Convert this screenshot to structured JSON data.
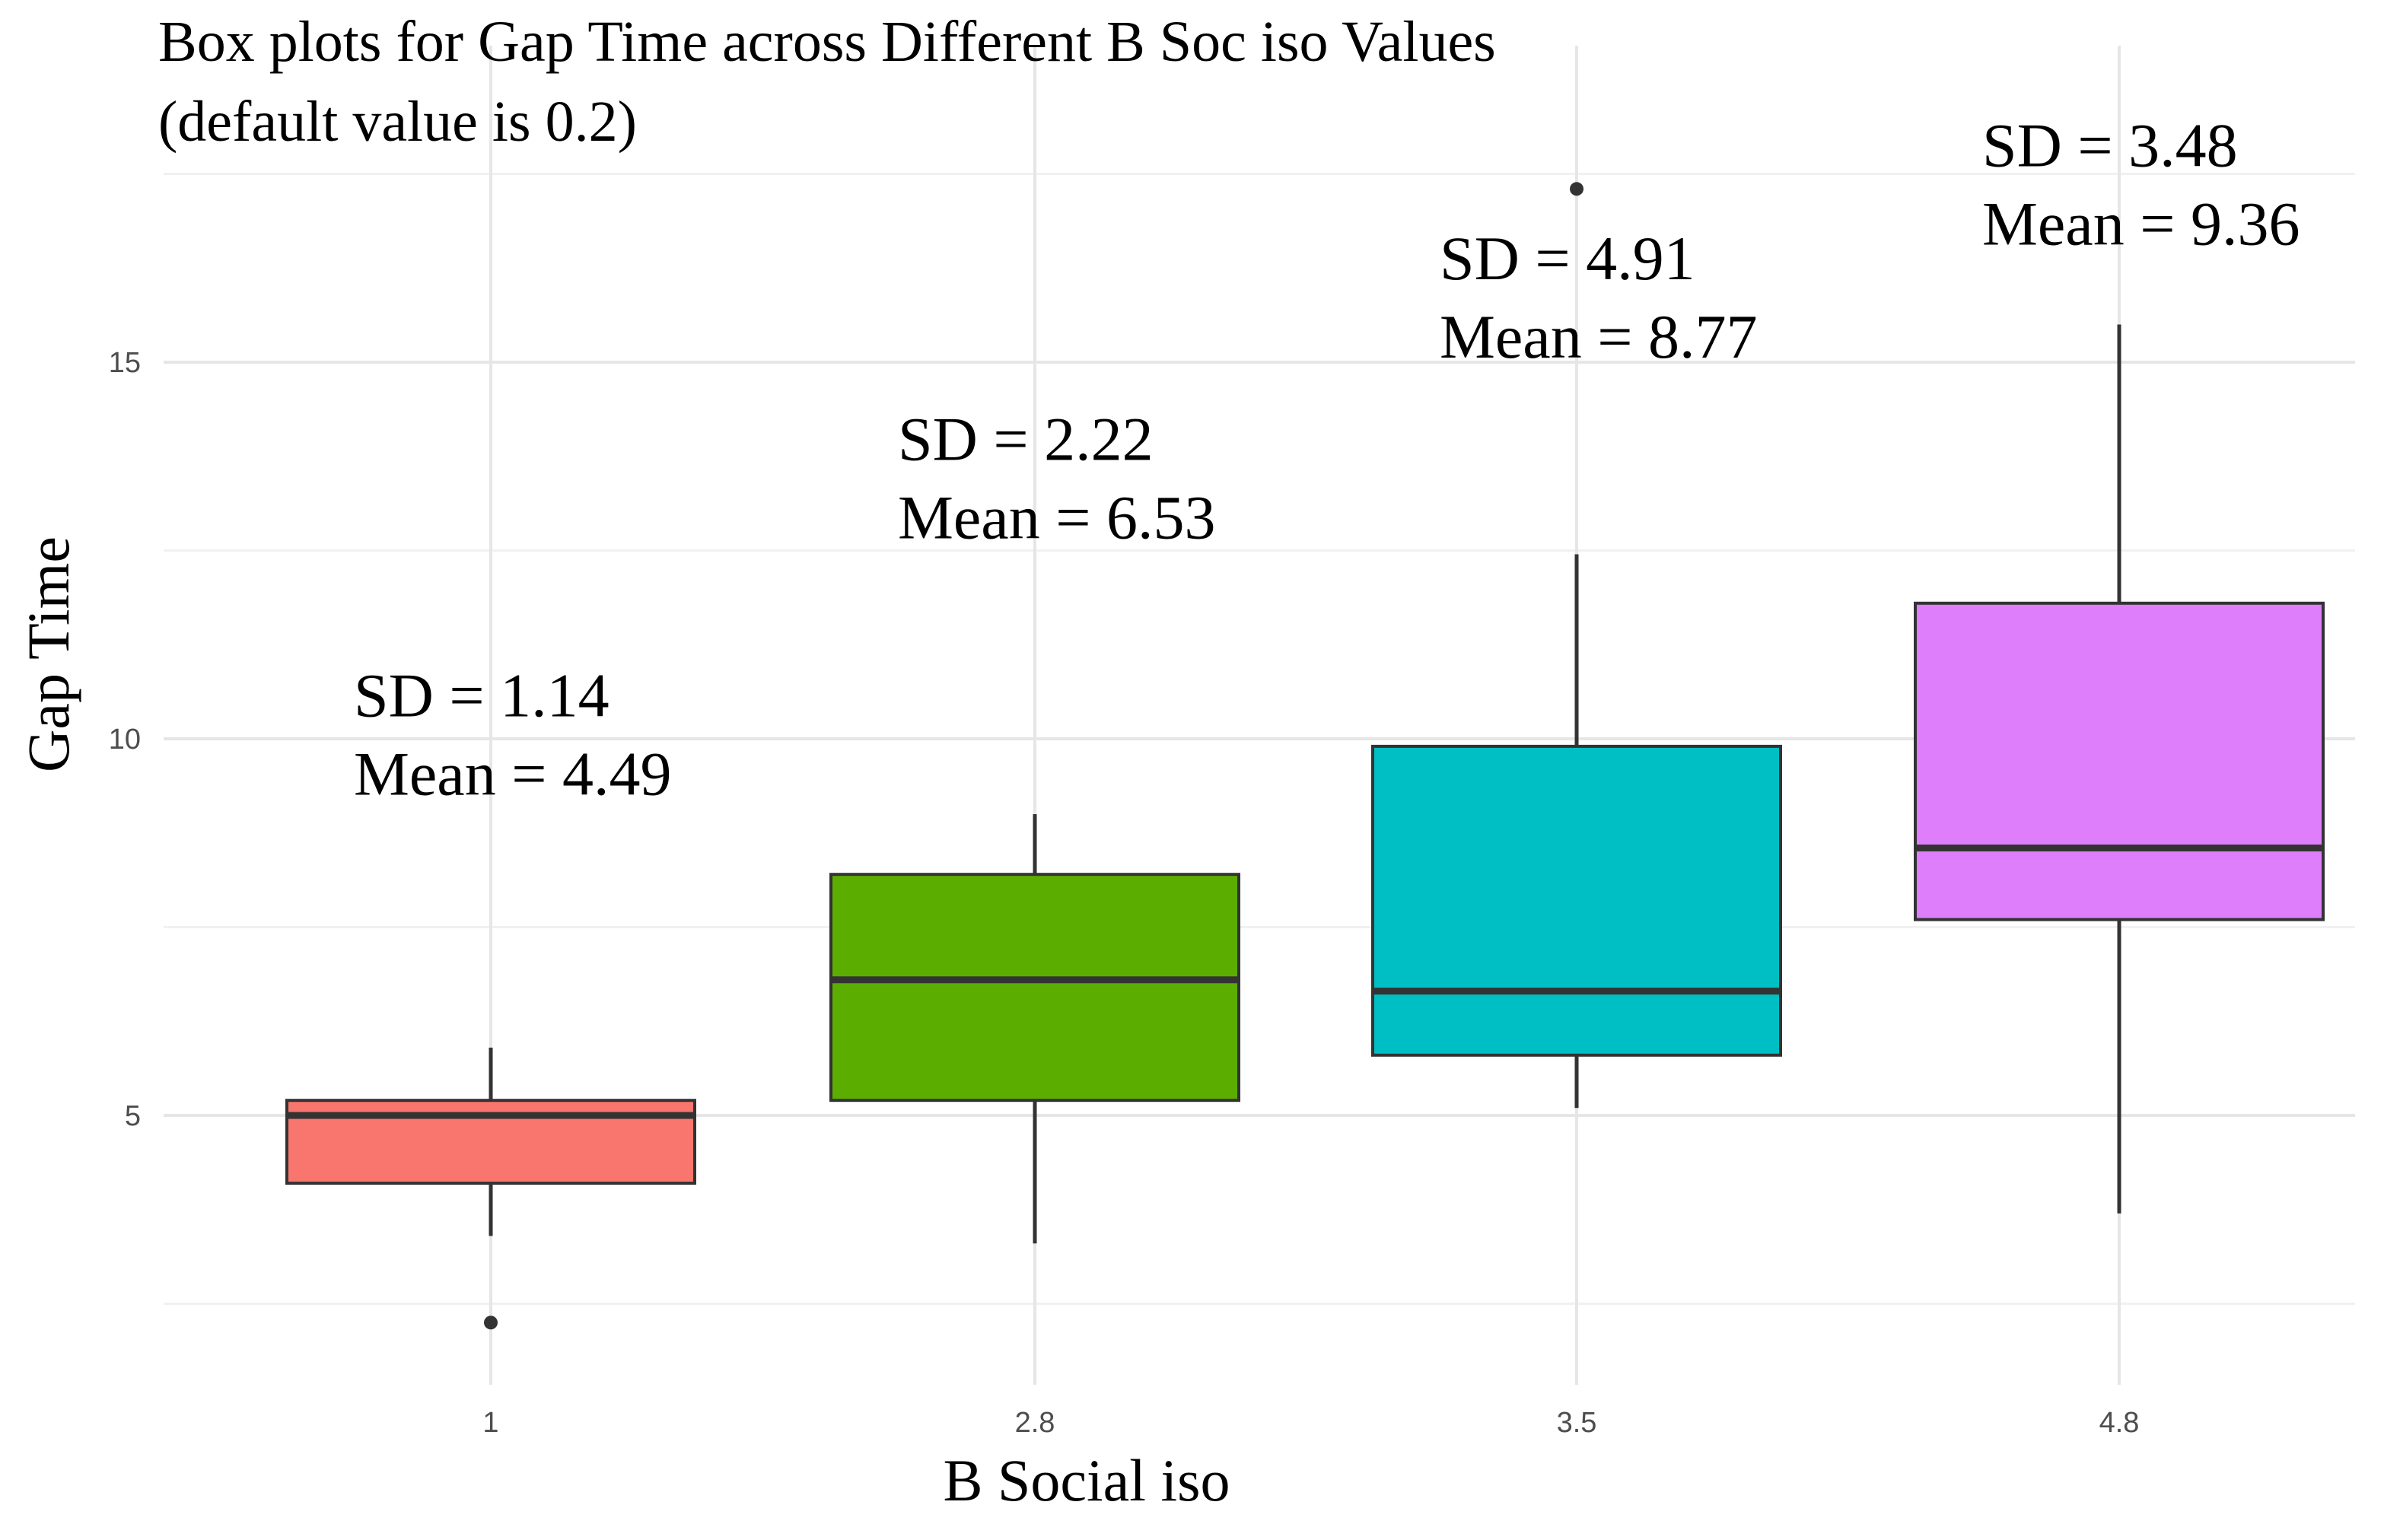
{
  "chart_data": {
    "type": "boxplot",
    "title": "Box plots for Gap Time across Different B Soc iso Values",
    "subtitle": "(default value is 0.2)",
    "xlabel": "B Social iso",
    "ylabel": "Gap Time",
    "ylim": [
      1.3,
      18.0
    ],
    "yticks": [
      5,
      10,
      15
    ],
    "yticks_minor": [
      2.5,
      7.5,
      12.5,
      17.5
    ],
    "grid": true,
    "legend": "none",
    "categories": [
      "1",
      "2.8",
      "3.5",
      "4.8"
    ],
    "boxes": [
      {
        "category": "1",
        "color": "#F8766D",
        "whisker_low": 3.4,
        "q1": 4.1,
        "median": 5.0,
        "q3": 5.2,
        "whisker_high": 5.9,
        "outliers": [
          2.25
        ],
        "sd_label": "SD = 1.14",
        "mean_label": "Mean = 4.49",
        "annot_y": 10.3
      },
      {
        "category": "2.8",
        "color": "#5BAE00",
        "whisker_low": 3.3,
        "q1": 5.2,
        "median": 6.8,
        "q3": 8.2,
        "whisker_high": 9.0,
        "outliers": [],
        "sd_label": "SD = 2.22",
        "mean_label": "Mean = 6.53",
        "annot_y": 13.7
      },
      {
        "category": "3.5",
        "color": "#00BFC4",
        "whisker_low": 5.1,
        "q1": 5.8,
        "median": 6.65,
        "q3": 9.9,
        "whisker_high": 12.45,
        "outliers": [
          17.3
        ],
        "sd_label": "SD = 4.91",
        "mean_label": "Mean = 8.77",
        "annot_y": 16.1
      },
      {
        "category": "4.8",
        "color": "#DE7EFA",
        "whisker_low": 3.7,
        "q1": 7.6,
        "median": 8.55,
        "q3": 11.8,
        "whisker_high": 15.5,
        "outliers": [],
        "sd_label": "SD = 3.48",
        "mean_label": "Mean = 9.36",
        "annot_y": 17.6
      }
    ]
  }
}
